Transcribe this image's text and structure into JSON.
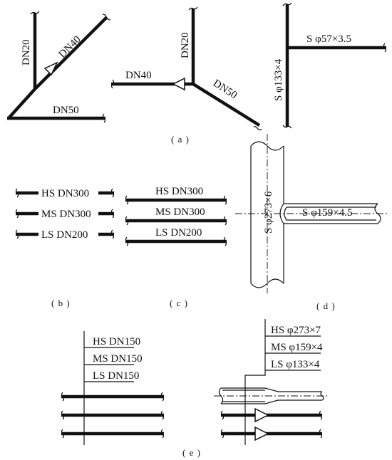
{
  "panel_a": {
    "left": {
      "dn20": "DN20",
      "dn40": "DN40",
      "dn50": "DN50"
    },
    "middle": {
      "dn20": "DN20",
      "dn40": "DN40",
      "dn50": "DN50"
    },
    "right": {
      "main": "S φ133×4",
      "branch": "S φ57×3.5"
    },
    "caption": "( a )"
  },
  "panel_b": {
    "labels": [
      "HS DN300",
      "MS DN300",
      "LS DN200"
    ],
    "caption": "( b )"
  },
  "panel_c": {
    "labels": [
      "HS DN300",
      "MS DN300",
      "LS DN200"
    ],
    "caption": "( c )"
  },
  "panel_d": {
    "main": "S φ273×6",
    "branch": "S φ159×4.5",
    "caption": "( d )"
  },
  "panel_e": {
    "left_labels": [
      "HS DN150",
      "MS DN150",
      "LS DN150"
    ],
    "right_labels": [
      "HS φ273×7",
      "MS φ159×4",
      "LS φ133×4"
    ],
    "caption": "( e )"
  }
}
